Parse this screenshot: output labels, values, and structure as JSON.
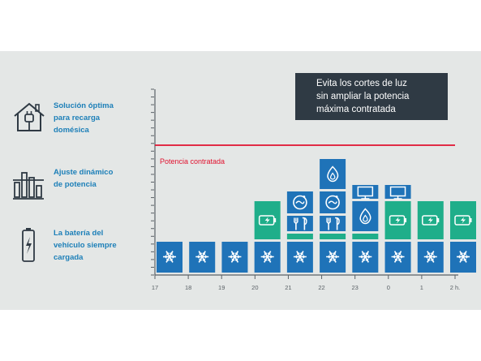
{
  "sidebar": {
    "items": [
      {
        "icon": "house-plug-icon",
        "lines": [
          "Solución óptima",
          "para recarga",
          "domésica"
        ]
      },
      {
        "icon": "dynamic-adjust-icon",
        "lines": [
          "Ajuste dinámico",
          "de potencia"
        ]
      },
      {
        "icon": "battery-charge-icon",
        "lines": [
          "La batería del",
          "vehículo siempre",
          "cargada"
        ]
      }
    ]
  },
  "callout": {
    "lines": [
      "Evita los cortes de luz",
      "sin ampliar la potencia",
      "máxima contratada"
    ]
  },
  "colors": {
    "blue": "#1f73b8",
    "green": "#1fae8a",
    "limit_line": "#e1122f",
    "axis": "#5a6166"
  },
  "chart_data": {
    "type": "bar",
    "categories": [
      "17",
      "18",
      "19",
      "20",
      "21",
      "22",
      "23",
      "0",
      "1",
      "2 h."
    ],
    "reference_line": {
      "label": "Potencia contratada",
      "value": 8
    },
    "ylim": [
      0,
      12
    ],
    "segment_legend": {
      "blue-snowflake": "snowflake-icon",
      "green-battery": "battery-icon",
      "blue-cutlery": "cutlery-icon",
      "blue-washer": "washer-icon",
      "blue-flame": "flame-icon",
      "blue-monitor": "monitor-icon"
    },
    "stacks": [
      {
        "hour": "17",
        "segments": [
          "snowflake-icon"
        ]
      },
      {
        "hour": "18",
        "segments": [
          "snowflake-icon"
        ]
      },
      {
        "hour": "19",
        "segments": [
          "snowflake-icon"
        ]
      },
      {
        "hour": "20",
        "segments": [
          "snowflake-icon",
          "battery-icon"
        ]
      },
      {
        "hour": "21",
        "segments": [
          "snowflake-icon",
          "battery-icon",
          "cutlery-icon",
          "washer-icon"
        ]
      },
      {
        "hour": "22",
        "segments": [
          "snowflake-icon",
          "battery-icon",
          "cutlery-icon",
          "washer-icon",
          "flame-icon"
        ]
      },
      {
        "hour": "23",
        "segments": [
          "snowflake-icon",
          "battery-icon",
          "flame-icon",
          "monitor-icon"
        ]
      },
      {
        "hour": "0",
        "segments": [
          "snowflake-icon",
          "battery-icon",
          "monitor-icon"
        ]
      },
      {
        "hour": "1",
        "segments": [
          "snowflake-icon",
          "battery-icon"
        ]
      },
      {
        "hour": "2 h.",
        "segments": [
          "snowflake-icon",
          "battery-icon"
        ]
      }
    ]
  }
}
